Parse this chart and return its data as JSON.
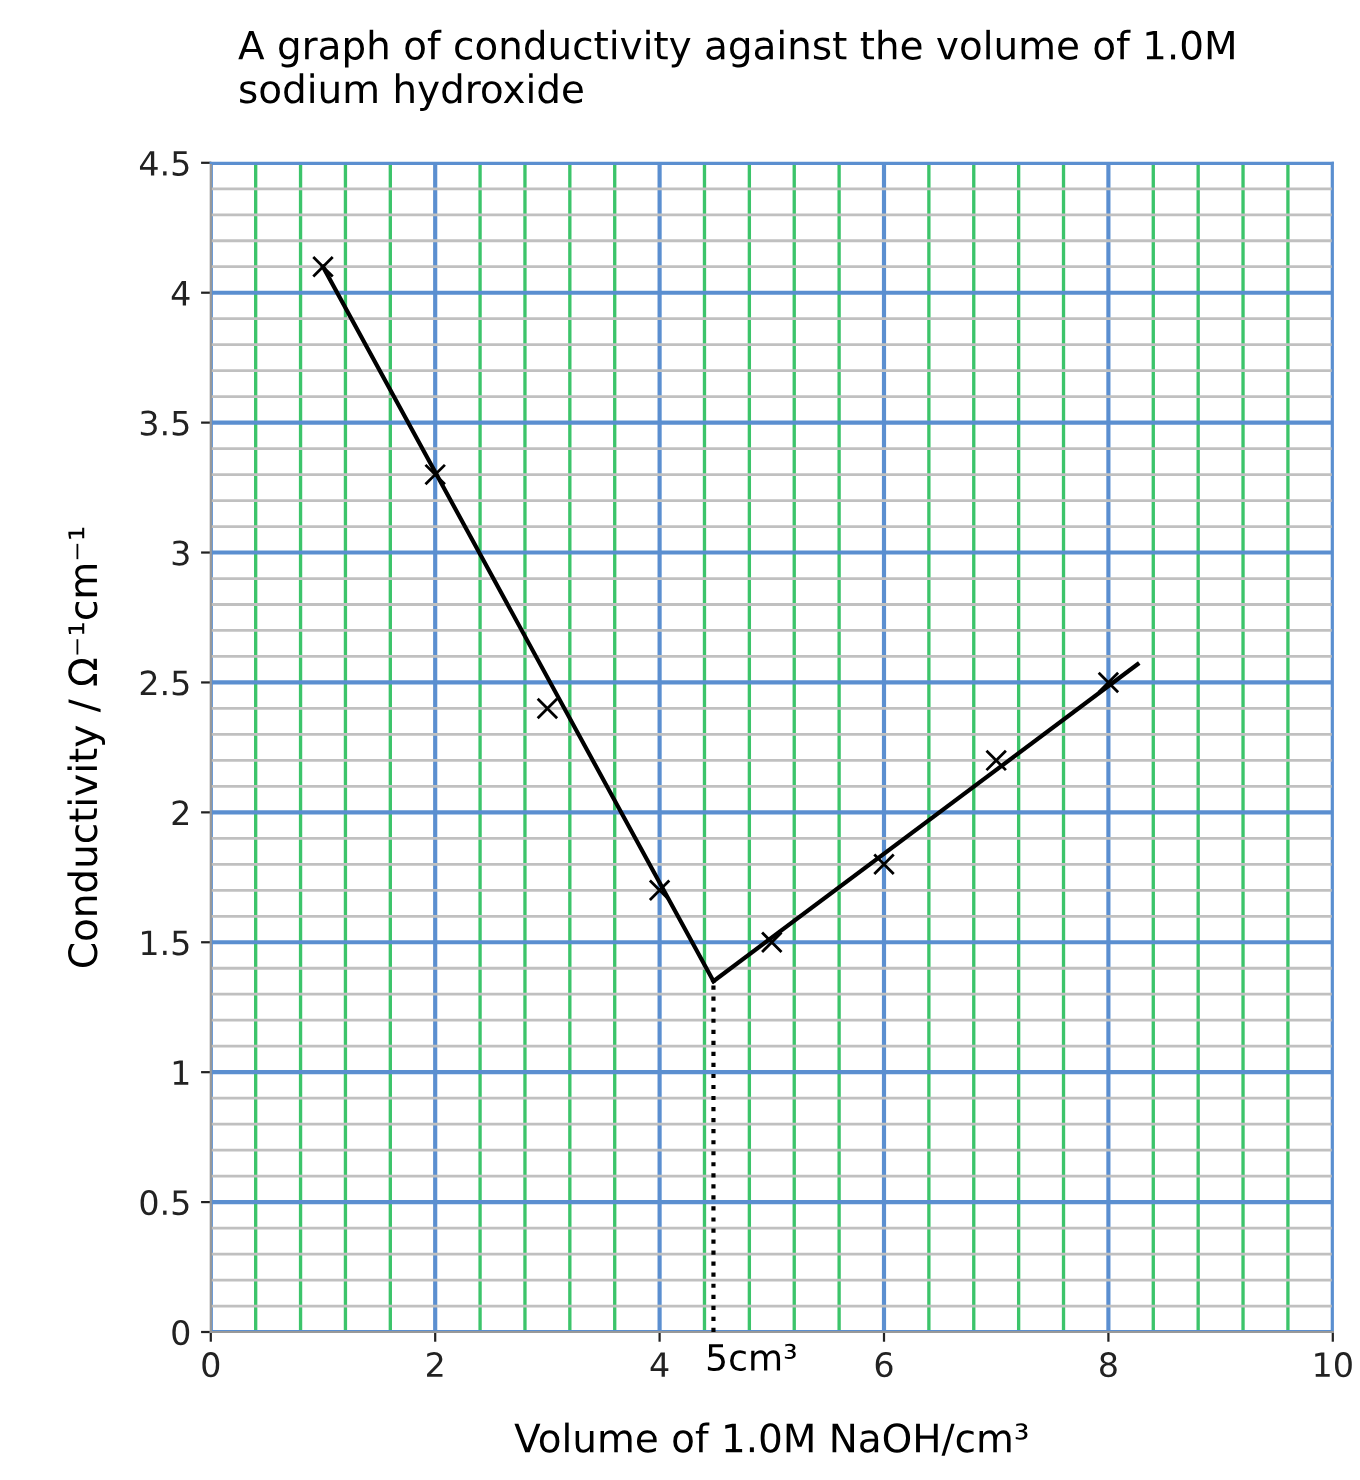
{
  "chart_data": {
    "type": "scatter",
    "title": "A graph of conductivity against the volume of 1.0M sodium hydroxide",
    "xlabel": "Volume of 1.0M NaOH/cm³",
    "ylabel": "Conductivity / Ω⁻¹cm⁻¹",
    "xlim": [
      0,
      10
    ],
    "ylim": [
      0,
      4.5
    ],
    "xticks": [
      0,
      {
        "value": 0.4,
        "label": null
      },
      {
        "value": 0.8,
        "label": null
      },
      {
        "value": 1.2,
        "label": null
      },
      {
        "value": 1.6,
        "label": null
      },
      2,
      {
        "value": 2.4,
        "label": null
      },
      {
        "value": 2.8,
        "label": null
      },
      {
        "value": 3.2,
        "label": null
      },
      {
        "value": 3.6,
        "label": null
      },
      4,
      {
        "value": 4.4,
        "label": null
      },
      {
        "value": 4.8,
        "label": null
      },
      {
        "value": 5.2,
        "label": null
      },
      {
        "value": 5.6,
        "label": null
      },
      6,
      {
        "value": 6.4,
        "label": null
      },
      {
        "value": 6.8,
        "label": null
      },
      {
        "value": 7.2,
        "label": null
      },
      {
        "value": 7.6,
        "label": null
      },
      8,
      {
        "value": 8.4,
        "label": null
      },
      {
        "value": 8.8,
        "label": null
      },
      {
        "value": 9.2,
        "label": null
      },
      {
        "value": 9.6,
        "label": null
      },
      10
    ],
    "yticks": [
      0,
      {
        "value": 0.1,
        "label": null
      },
      {
        "value": 0.2,
        "label": null
      },
      {
        "value": 0.3,
        "label": null
      },
      {
        "value": 0.4,
        "label": null
      },
      0.5,
      {
        "value": 0.6,
        "label": null
      },
      {
        "value": 0.7,
        "label": null
      },
      {
        "value": 0.8,
        "label": null
      },
      {
        "value": 0.9,
        "label": null
      },
      1,
      {
        "value": 1.1,
        "label": null
      },
      {
        "value": 1.2,
        "label": null
      },
      {
        "value": 1.3,
        "label": null
      },
      {
        "value": 1.4,
        "label": null
      },
      1.5,
      {
        "value": 1.6,
        "label": null
      },
      {
        "value": 1.7,
        "label": null
      },
      {
        "value": 1.8,
        "label": null
      },
      {
        "value": 1.9,
        "label": null
      },
      2,
      {
        "value": 2.1,
        "label": null
      },
      {
        "value": 2.2,
        "label": null
      },
      {
        "value": 2.3,
        "label": null
      },
      {
        "value": 2.4,
        "label": null
      },
      2.5,
      {
        "value": 2.6,
        "label": null
      },
      {
        "value": 2.7,
        "label": null
      },
      {
        "value": 2.8,
        "label": null
      },
      {
        "value": 2.9,
        "label": null
      },
      3,
      {
        "value": 3.1,
        "label": null
      },
      {
        "value": 3.2,
        "label": null
      },
      {
        "value": 3.3,
        "label": null
      },
      {
        "value": 3.4,
        "label": null
      },
      3.5,
      {
        "value": 3.6,
        "label": null
      },
      {
        "value": 3.7,
        "label": null
      },
      {
        "value": 3.8,
        "label": null
      },
      {
        "value": 3.9,
        "label": null
      },
      4,
      {
        "value": 4.1,
        "label": null
      },
      {
        "value": 4.2,
        "label": null
      },
      {
        "value": 4.3,
        "label": null
      },
      {
        "value": 4.4,
        "label": null
      },
      4.5
    ],
    "grid": true,
    "legend": false,
    "series": [
      {
        "color": "#000000",
        "marker": "cross",
        "x": [
          1,
          2,
          3,
          4,
          5,
          6,
          7,
          8
        ],
        "values": [
          4.1,
          3.3,
          2.4,
          1.7,
          1.5,
          1.8,
          2.2,
          2.5
        ]
      },
      {
        "type": "line",
        "color": "#000000",
        "line_style": "solid",
        "marker": "none",
        "x": [
          1,
          4.48
        ],
        "values": [
          4.1,
          1.35
        ]
      },
      {
        "type": "line",
        "color": "#000000",
        "line_style": "solid",
        "marker": "none",
        "x": [
          4.48,
          8.26
        ],
        "values": [
          1.35,
          2.57
        ]
      },
      {
        "type": "line",
        "color": "#000000",
        "line_style": "dotted",
        "marker": "none",
        "x": [
          4.48,
          4.48
        ],
        "values": [
          0,
          1.35
        ]
      }
    ],
    "annotations": [
      {
        "text": "5cm³",
        "x": 4.48,
        "y": 0
      }
    ]
  }
}
